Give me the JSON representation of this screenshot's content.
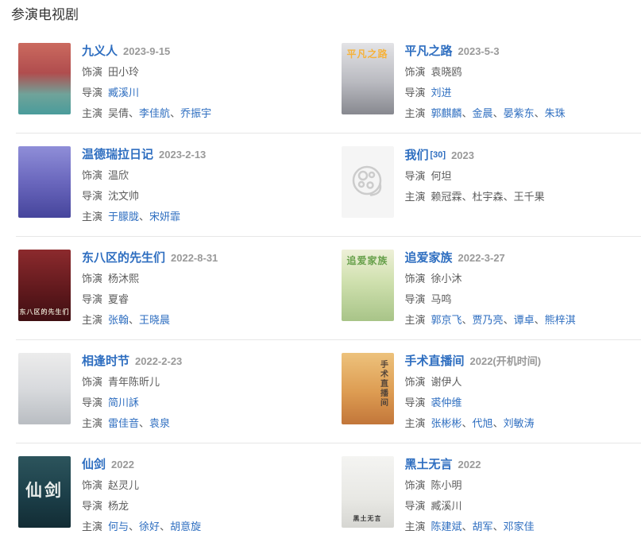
{
  "section_title": "参演电视剧",
  "labels": {
    "role": "饰演",
    "director": "导演",
    "cast": "主演"
  },
  "colors": {
    "link_blue": "#2e6ec0",
    "text_gray": "#5c5c5c",
    "date_gray": "#999999",
    "divider": "#e7e7e7",
    "placeholder_bg": "#f5f5f5",
    "reel_gray": "#cccccc",
    "header_text": "#333333"
  },
  "entries": [
    {
      "title": "九义人",
      "ref": "",
      "date": "2023-9-15",
      "role": "田小玲",
      "directors": [
        {
          "name": "臧溪川",
          "link": true
        }
      ],
      "cast": [
        {
          "name": "吴倩",
          "link": false
        },
        {
          "name": "李佳航",
          "link": true
        },
        {
          "name": "乔振宇",
          "link": true
        }
      ],
      "poster": {
        "kind": "art",
        "stops": [
          "#cb6a5f",
          "#b04d4e 42%",
          "#6fa39a 72%",
          "#4a9c9b"
        ],
        "text": "",
        "text_color": "",
        "text_pos": ""
      }
    },
    {
      "title": "平凡之路",
      "ref": "",
      "date": "2023-5-3",
      "role": "袁晓鸥",
      "directors": [
        {
          "name": "刘进",
          "link": true
        }
      ],
      "cast": [
        {
          "name": "郭麒麟",
          "link": true
        },
        {
          "name": "金晨",
          "link": true
        },
        {
          "name": "晏紫东",
          "link": true
        },
        {
          "name": "朱珠",
          "link": true
        }
      ],
      "poster": {
        "kind": "art",
        "stops": [
          "#e3e3e6",
          "#b9bac0 55%",
          "#87888f"
        ],
        "text": "平凡之路",
        "text_color": "#f6b23a",
        "text_pos": "top"
      }
    },
    {
      "title": "温德瑞拉日记",
      "ref": "",
      "date": "2023-2-13",
      "role": "温欣",
      "directors": [
        {
          "name": "沈文帅",
          "link": false
        }
      ],
      "cast": [
        {
          "name": "于朦胧",
          "link": true
        },
        {
          "name": "宋妍霏",
          "link": true
        }
      ],
      "poster": {
        "kind": "art",
        "stops": [
          "#8f8ed8",
          "#6a67bd 50%",
          "#46459c"
        ],
        "text": "",
        "text_color": "",
        "text_pos": ""
      }
    },
    {
      "title": "我们",
      "ref": "[30]",
      "date": "2023",
      "role": null,
      "directors": [
        {
          "name": "何坦",
          "link": false
        }
      ],
      "cast": [
        {
          "name": "赖冠霖",
          "link": false
        },
        {
          "name": "杜宇森",
          "link": false
        },
        {
          "name": "王千果",
          "link": false
        }
      ],
      "poster": {
        "kind": "placeholder",
        "stops": [],
        "text": "",
        "text_color": "",
        "text_pos": ""
      }
    },
    {
      "title": "东八区的先生们",
      "ref": "",
      "date": "2022-8-31",
      "role": "杨沐熙",
      "directors": [
        {
          "name": "夏睿",
          "link": false
        }
      ],
      "cast": [
        {
          "name": "张翰",
          "link": true
        },
        {
          "name": "王晓晨",
          "link": true
        }
      ],
      "poster": {
        "kind": "art",
        "stops": [
          "#8c2a2d",
          "#5e181c 60%",
          "#3f0f12"
        ],
        "text": "东八区的先生们",
        "text_color": "#d8cfc0",
        "text_pos": "bottom"
      }
    },
    {
      "title": "追爱家族",
      "ref": "",
      "date": "2022-3-27",
      "role": "徐小沐",
      "directors": [
        {
          "name": "马鸣",
          "link": false
        }
      ],
      "cast": [
        {
          "name": "郭京飞",
          "link": true
        },
        {
          "name": "贾乃亮",
          "link": true
        },
        {
          "name": "谭卓",
          "link": true
        },
        {
          "name": "熊梓淇",
          "link": true
        }
      ],
      "poster": {
        "kind": "art",
        "stops": [
          "#eef0d8",
          "#cfe0ae 45%",
          "#a8c488"
        ],
        "text": "追爱家族",
        "text_color": "#67a04b",
        "text_pos": "top"
      }
    },
    {
      "title": "相逢时节",
      "ref": "",
      "date": "2022-2-23",
      "role": "青年陈昕儿",
      "directors": [
        {
          "name": "简川訸",
          "link": true
        }
      ],
      "cast": [
        {
          "name": "雷佳音",
          "link": true
        },
        {
          "name": "袁泉",
          "link": true
        }
      ],
      "poster": {
        "kind": "art",
        "stops": [
          "#ececec",
          "#d8dadd 50%",
          "#b9bdc2"
        ],
        "text": "",
        "text_color": "",
        "text_pos": ""
      }
    },
    {
      "title": "手术直播间",
      "ref": "",
      "date": "2022(开机时间)",
      "role": "谢伊人",
      "directors": [
        {
          "name": "裘仲维",
          "link": true
        }
      ],
      "cast": [
        {
          "name": "张彬彬",
          "link": true
        },
        {
          "name": "代旭",
          "link": true
        },
        {
          "name": "刘敏涛",
          "link": true
        }
      ],
      "poster": {
        "kind": "art",
        "stops": [
          "#edc27c",
          "#dd9c52 55%",
          "#c2763a"
        ],
        "text": "手术直播间",
        "text_color": "#54453a",
        "text_pos": "vertical"
      }
    },
    {
      "title": "仙剑",
      "ref": "",
      "date": "2022",
      "role": "赵灵儿",
      "directors": [
        {
          "name": "杨龙",
          "link": false
        }
      ],
      "cast": [
        {
          "name": "何与",
          "link": true
        },
        {
          "name": "徐好",
          "link": true
        },
        {
          "name": "胡意旋",
          "link": true
        }
      ],
      "poster": {
        "kind": "art",
        "stops": [
          "#2c545c",
          "#1c3f49 55%",
          "#122c34"
        ],
        "text": "仙剑",
        "text_color": "#e8ecea",
        "text_pos": "center"
      }
    },
    {
      "title": "黑土无言",
      "ref": "",
      "date": "2022",
      "role": "陈小明",
      "directors": [
        {
          "name": "臧溪川",
          "link": false
        }
      ],
      "cast": [
        {
          "name": "陈建斌",
          "link": true
        },
        {
          "name": "胡军",
          "link": true
        },
        {
          "name": "邓家佳",
          "link": true
        }
      ],
      "poster": {
        "kind": "art",
        "stops": [
          "#f4f4f2",
          "#e8e8e4 60%",
          "#d6d6d2"
        ],
        "text": "黑土无言",
        "text_color": "#3a3a3a",
        "text_pos": "bottom"
      }
    }
  ]
}
